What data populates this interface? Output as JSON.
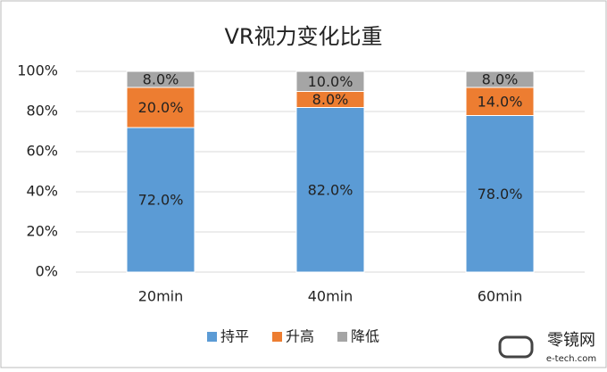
{
  "chart_data": {
    "type": "stacked_bar",
    "title": "VR视力变化比重",
    "categories": [
      "20min",
      "40min",
      "60min"
    ],
    "series": [
      {
        "name": "持平",
        "color": "#5b9bd5",
        "values": [
          72,
          82,
          78
        ],
        "value_labels": [
          "72.0%",
          "82.0%",
          "78.0%"
        ]
      },
      {
        "name": "升高",
        "color": "#ed7d31",
        "values": [
          20,
          8,
          14
        ],
        "value_labels": [
          "20.0%",
          "8.0%",
          "14.0%"
        ]
      },
      {
        "name": "降低",
        "color": "#a5a5a5",
        "values": [
          8,
          10,
          8
        ],
        "value_labels": [
          "8.0%",
          "10.0%",
          "8.0%"
        ]
      }
    ],
    "ylim": [
      0,
      100
    ],
    "yticks": [
      {
        "value": 0,
        "label": "0%"
      },
      {
        "value": 20,
        "label": "20%"
      },
      {
        "value": 40,
        "label": "40%"
      },
      {
        "value": 60,
        "label": "60%"
      },
      {
        "value": 80,
        "label": "80%"
      },
      {
        "value": 100,
        "label": "100%"
      }
    ],
    "grid": true,
    "legend": "bottom",
    "watermark": {
      "name": "零镜网",
      "url": "e-tech.com"
    }
  }
}
